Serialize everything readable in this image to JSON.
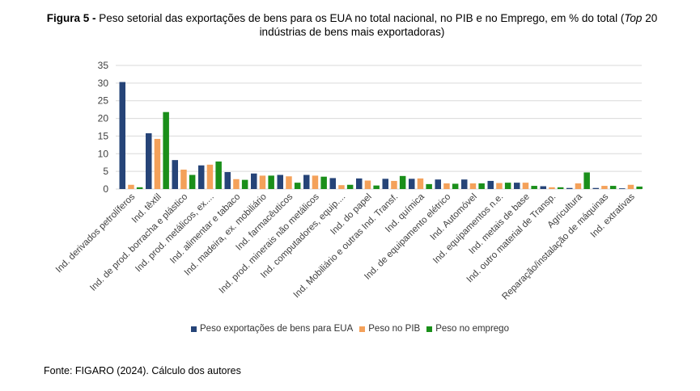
{
  "figure": {
    "label": "Figura 5 -",
    "title_part1": " Peso setorial das exportações de bens para os EUA no total nacional, no PIB e no Emprego, em % do total (",
    "title_italic": "Top",
    "title_part2": " 20 indústrias de bens mais exportadoras)",
    "source": "Fonte: FIGARO (2024). Cálculo dos autores"
  },
  "colors": {
    "series1": "#264478",
    "series2": "#f4a15a",
    "series3": "#1a8f1a",
    "grid": "#d9d9d9",
    "axis_text": "#404040"
  },
  "chart_data": {
    "type": "bar",
    "categories": [
      "Ind. derivados petrolíferos",
      "Ind. têxtil",
      "Ind. de prod. borracha e plástico",
      "Ind. prod. metálicos, ex....",
      "Ind. alimentar e tabaco",
      "Ind. madeira, ex. mobiliário",
      "Ind. farmacêuticos",
      "Ind. prod. minerais não metálicos",
      "Ind. computadores, equip....",
      "Ind. do papel",
      "Ind. Mobiliário e outras Ind. Transf.",
      "Ind. química",
      "Ind. de equipamento elétrico",
      "Ind. Automóvel",
      "Ind. equipamentos n.e.",
      "Ind. metais de base",
      "Ind. outro material de Transp.",
      "Agricultura",
      "Reparação/instalação de máquinas",
      "Ind. extrativas"
    ],
    "series": [
      {
        "name": "Peso exportações de bens para EUA",
        "values": [
          30.3,
          15.8,
          8.2,
          6.7,
          4.8,
          4.4,
          4.0,
          4.0,
          3.1,
          3.0,
          2.9,
          2.9,
          2.7,
          2.7,
          2.3,
          1.8,
          0.8,
          0.3,
          0.3,
          0.2
        ]
      },
      {
        "name": "Peso no PIB",
        "values": [
          1.2,
          14.2,
          5.5,
          6.9,
          2.8,
          3.8,
          3.6,
          3.8,
          1.1,
          2.4,
          2.3,
          3.0,
          1.6,
          1.6,
          1.7,
          1.8,
          0.5,
          1.6,
          0.9,
          1.2
        ]
      },
      {
        "name": "Peso no emprego",
        "values": [
          0.5,
          21.8,
          4.0,
          7.8,
          2.6,
          3.8,
          1.8,
          3.5,
          1.2,
          1.0,
          3.7,
          1.4,
          1.5,
          1.6,
          1.8,
          0.9,
          0.5,
          4.7,
          0.9,
          0.7
        ]
      }
    ],
    "y_ticks": [
      "0",
      "5",
      "10",
      "15",
      "20",
      "25",
      "30",
      "35"
    ],
    "ylim": [
      0,
      35
    ],
    "grid": true,
    "legend_position": "bottom"
  }
}
